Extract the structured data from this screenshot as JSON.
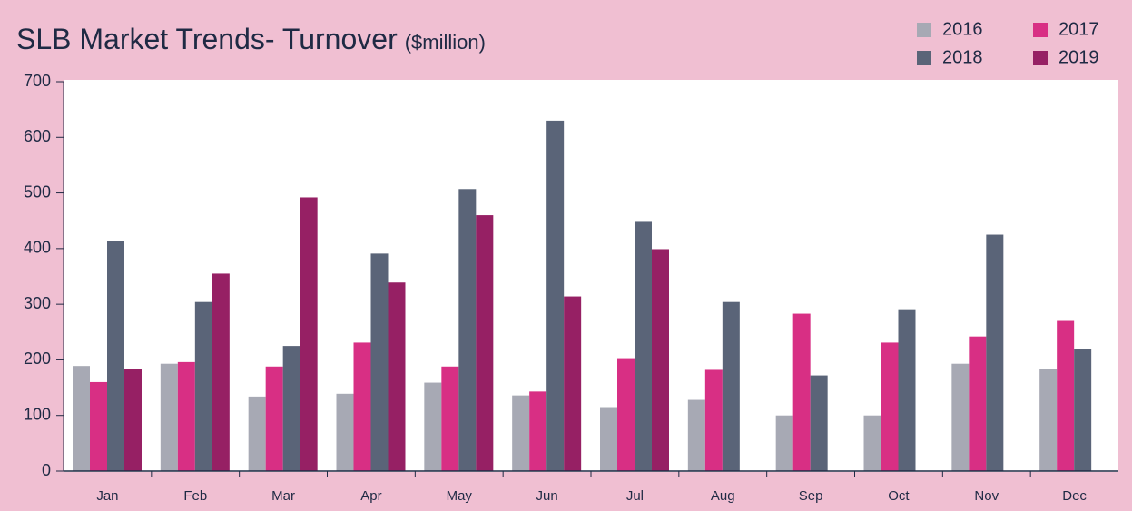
{
  "chart_data": {
    "type": "bar",
    "title": "SLB Market Trends- Turnover",
    "unit": "($million)",
    "categories": [
      "Jan",
      "Feb",
      "Mar",
      "Apr",
      "May",
      "Jun",
      "Jul",
      "Aug",
      "Sep",
      "Oct",
      "Nov",
      "Dec"
    ],
    "series": [
      {
        "name": "2016",
        "color": "#a7a9b4",
        "values": [
          189,
          193,
          134,
          139,
          159,
          136,
          115,
          128,
          100,
          100,
          193,
          183
        ]
      },
      {
        "name": "2017",
        "color": "#d82f84",
        "values": [
          160,
          196,
          188,
          231,
          188,
          143,
          203,
          182,
          283,
          231,
          242,
          270
        ]
      },
      {
        "name": "2018",
        "color": "#5a6478",
        "values": [
          413,
          304,
          225,
          391,
          507,
          630,
          448,
          304,
          172,
          291,
          425,
          219
        ]
      },
      {
        "name": "2019",
        "color": "#962064",
        "values": [
          184,
          355,
          492,
          339,
          460,
          314,
          399,
          null,
          null,
          null,
          null,
          null
        ]
      }
    ],
    "ylim": [
      0,
      700
    ],
    "yticks": [
      0,
      100,
      200,
      300,
      400,
      500,
      600,
      700
    ],
    "grid": false,
    "legend": "top-right"
  }
}
